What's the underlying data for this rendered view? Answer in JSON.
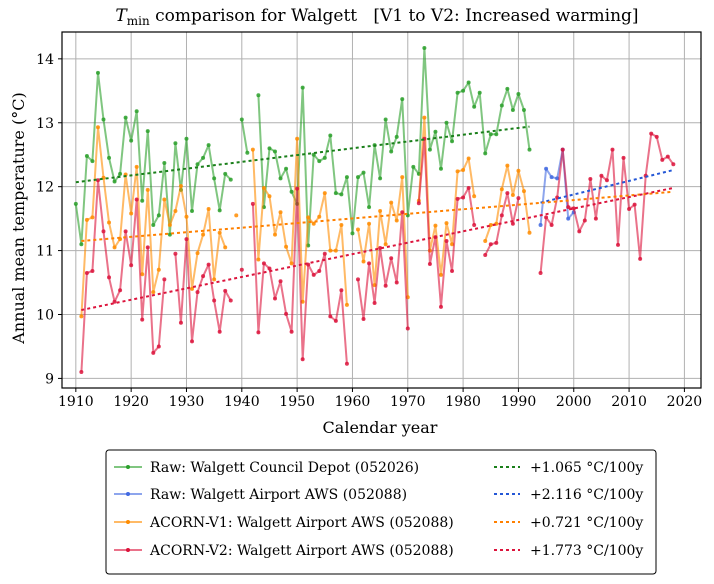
{
  "chart_data": {
    "type": "line",
    "title": {
      "prefix_italic": "T",
      "subscript": "min",
      "rest": " comparison for Walgett   [V1 to V2: Increased warming]"
    },
    "xlabel": "Calendar year",
    "ylabel": "Annual mean temperature (°C)",
    "xlim": [
      1907.5,
      2023
    ],
    "ylim": [
      8.85,
      14.42
    ],
    "xticks": [
      1910,
      1920,
      1930,
      1940,
      1950,
      1960,
      1970,
      1980,
      1990,
      2000,
      2010,
      2020
    ],
    "yticks": [
      9,
      10,
      11,
      12,
      13,
      14
    ],
    "grid": true,
    "legend_position": "below-center",
    "series": [
      {
        "name": "Raw: Walgett Council Depot (052026)",
        "color": "#2ca02c",
        "trend_color": "#1a7f1a",
        "points": [
          [
            1910,
            11.73
          ],
          [
            1911,
            11.1
          ],
          [
            1912,
            12.48
          ],
          [
            1913,
            12.4
          ],
          [
            1914,
            13.78
          ],
          [
            1915,
            13.05
          ],
          [
            1916,
            12.45
          ],
          [
            1917,
            12.08
          ],
          [
            1918,
            12.2
          ],
          [
            1919,
            13.08
          ],
          [
            1920,
            12.72
          ],
          [
            1921,
            13.18
          ],
          [
            1922,
            11.78
          ],
          [
            1923,
            12.87
          ],
          [
            1924,
            11.4
          ],
          [
            1925,
            11.55
          ],
          [
            1926,
            12.37
          ],
          [
            1927,
            11.25
          ],
          [
            1928,
            12.68
          ],
          [
            1929,
            11.95
          ],
          [
            1930,
            12.75
          ],
          [
            1931,
            11.62
          ],
          [
            1932,
            12.35
          ],
          [
            1933,
            12.45
          ],
          [
            1934,
            12.65
          ],
          [
            1935,
            12.13
          ],
          [
            1936,
            11.63
          ],
          [
            1937,
            12.2
          ],
          [
            1938,
            12.11
          ],
          null,
          [
            1940,
            13.05
          ],
          [
            1941,
            12.53
          ],
          null,
          [
            1943,
            13.43
          ],
          [
            1944,
            11.68
          ],
          [
            1945,
            12.6
          ],
          [
            1946,
            12.55
          ],
          [
            1947,
            12.13
          ],
          [
            1948,
            12.28
          ],
          [
            1949,
            11.92
          ],
          [
            1950,
            11.73
          ],
          [
            1951,
            13.55
          ],
          [
            1952,
            11.08
          ],
          [
            1953,
            12.5
          ],
          [
            1954,
            12.4
          ],
          [
            1955,
            12.45
          ],
          [
            1956,
            12.8
          ],
          [
            1957,
            11.9
          ],
          [
            1958,
            11.88
          ],
          [
            1959,
            12.15
          ],
          [
            1960,
            11.27
          ],
          [
            1961,
            12.15
          ],
          [
            1962,
            12.22
          ],
          [
            1963,
            11.68
          ],
          [
            1964,
            12.65
          ],
          [
            1965,
            12.13
          ],
          [
            1966,
            13.05
          ],
          [
            1967,
            12.55
          ],
          [
            1968,
            12.78
          ],
          [
            1969,
            13.37
          ],
          [
            1970,
            11.55
          ],
          [
            1971,
            12.31
          ],
          [
            1972,
            12.2
          ],
          [
            1973,
            14.17
          ],
          [
            1974,
            12.58
          ],
          [
            1975,
            12.86
          ],
          [
            1976,
            12.28
          ],
          [
            1977,
            13.0
          ],
          [
            1978,
            12.71
          ],
          [
            1979,
            13.47
          ],
          [
            1980,
            13.5
          ],
          [
            1981,
            13.63
          ],
          [
            1982,
            13.25
          ],
          [
            1983,
            13.47
          ],
          [
            1984,
            12.52
          ],
          [
            1985,
            12.82
          ],
          [
            1986,
            12.82
          ],
          [
            1987,
            13.27
          ],
          [
            1988,
            13.53
          ],
          [
            1989,
            13.2
          ],
          [
            1990,
            13.45
          ],
          [
            1991,
            13.2
          ],
          [
            1992,
            12.58
          ]
        ],
        "trend": {
          "label": "+1.065 °C/100y",
          "x": [
            1910,
            1992
          ],
          "y": [
            12.07,
            12.94
          ]
        }
      },
      {
        "name": "Raw: Walgett Airport AWS (052088)",
        "color": "#4169e1",
        "trend_color": "#2457d6",
        "points": [
          [
            1994,
            11.4
          ],
          [
            1995,
            12.28
          ],
          [
            1996,
            12.15
          ],
          [
            1997,
            12.13
          ],
          [
            1998,
            12.58
          ],
          [
            1999,
            11.5
          ],
          [
            2000,
            11.6
          ]
        ],
        "trend": {
          "label": "+2.116 °C/100y",
          "x": [
            1994,
            2018
          ],
          "y": [
            11.75,
            12.26
          ]
        }
      },
      {
        "name": "ACORN-V1: Walgett Airport AWS (052088)",
        "color": "#ff8c00",
        "trend_color": "#ff8000",
        "points": [
          [
            1911,
            9.97
          ],
          [
            1912,
            11.48
          ],
          [
            1913,
            11.52
          ],
          [
            1914,
            12.93
          ],
          [
            1915,
            12.14
          ],
          [
            1916,
            11.44
          ],
          [
            1917,
            11.05
          ],
          [
            1918,
            11.18
          ],
          [
            1919,
            12.19
          ],
          [
            1920,
            11.58
          ],
          [
            1921,
            12.31
          ],
          [
            1922,
            10.63
          ],
          [
            1923,
            11.95
          ],
          [
            1924,
            10.35
          ],
          [
            1925,
            10.7
          ],
          [
            1926,
            11.8
          ],
          [
            1927,
            11.4
          ],
          [
            1928,
            11.62
          ],
          [
            1929,
            12.01
          ],
          [
            1930,
            11.53
          ],
          [
            1931,
            10.4
          ],
          [
            1932,
            10.96
          ],
          [
            1933,
            11.25
          ],
          [
            1934,
            11.65
          ],
          [
            1935,
            10.55
          ],
          [
            1936,
            11.28
          ],
          [
            1937,
            11.05
          ],
          null,
          [
            1939,
            11.55
          ],
          null,
          [
            1942,
            12.58
          ],
          [
            1943,
            10.86
          ],
          [
            1944,
            11.98
          ],
          [
            1945,
            11.85
          ],
          [
            1946,
            11.25
          ],
          [
            1947,
            11.6
          ],
          [
            1948,
            11.06
          ],
          [
            1949,
            10.8
          ],
          [
            1950,
            12.75
          ],
          [
            1951,
            10.2
          ],
          [
            1952,
            11.52
          ],
          [
            1953,
            11.42
          ],
          [
            1954,
            11.53
          ],
          [
            1955,
            11.9
          ],
          [
            1956,
            11.0
          ],
          [
            1957,
            11.0
          ],
          [
            1958,
            11.4
          ],
          [
            1959,
            10.15
          ],
          null,
          [
            1961,
            11.33
          ],
          [
            1962,
            10.83
          ],
          [
            1963,
            11.42
          ],
          [
            1964,
            10.46
          ],
          [
            1965,
            11.62
          ],
          [
            1966,
            11.1
          ],
          [
            1967,
            11.75
          ],
          [
            1968,
            11.47
          ],
          [
            1969,
            12.15
          ],
          [
            1970,
            10.27
          ],
          null,
          [
            1972,
            11.78
          ],
          [
            1973,
            13.08
          ],
          [
            1974,
            11.0
          ],
          [
            1975,
            11.39
          ],
          [
            1976,
            10.62
          ],
          [
            1977,
            11.43
          ],
          [
            1978,
            11.1
          ],
          [
            1979,
            12.24
          ],
          [
            1980,
            12.26
          ],
          [
            1981,
            12.44
          ],
          [
            1982,
            11.85
          ],
          null,
          [
            1984,
            11.15
          ],
          [
            1985,
            11.4
          ],
          [
            1986,
            11.42
          ],
          [
            1987,
            11.96
          ],
          [
            1988,
            12.33
          ],
          [
            1989,
            11.87
          ],
          [
            1990,
            12.25
          ],
          [
            1991,
            11.93
          ],
          [
            1992,
            11.28
          ]
        ],
        "trend": {
          "label": "+0.721 °C/100y",
          "x": [
            1911,
            2018
          ],
          "y": [
            11.15,
            11.92
          ]
        }
      },
      {
        "name": "ACORN-V2: Walgett Airport AWS (052088)",
        "color": "#dc143c",
        "trend_color": "#dc143c",
        "points": [
          [
            1911,
            9.1
          ],
          [
            1912,
            10.65
          ],
          [
            1913,
            10.68
          ],
          [
            1914,
            12.1
          ],
          [
            1915,
            11.3
          ],
          [
            1916,
            10.58
          ],
          [
            1917,
            10.2
          ],
          [
            1918,
            10.38
          ],
          [
            1919,
            11.3
          ],
          [
            1920,
            10.77
          ],
          [
            1921,
            11.8
          ],
          [
            1922,
            9.92
          ],
          [
            1923,
            11.05
          ],
          [
            1924,
            9.4
          ],
          [
            1925,
            9.5
          ],
          [
            1926,
            10.55
          ],
          null,
          [
            1928,
            10.95
          ],
          [
            1929,
            9.87
          ],
          [
            1930,
            11.18
          ],
          [
            1931,
            9.58
          ],
          [
            1932,
            10.35
          ],
          [
            1933,
            10.6
          ],
          [
            1934,
            10.78
          ],
          [
            1935,
            10.22
          ],
          [
            1936,
            9.73
          ],
          [
            1937,
            10.37
          ],
          [
            1938,
            10.22
          ],
          null,
          [
            1940,
            10.7
          ],
          null,
          [
            1942,
            11.73
          ],
          [
            1943,
            9.72
          ],
          [
            1944,
            10.8
          ],
          [
            1945,
            10.72
          ],
          [
            1946,
            10.25
          ],
          [
            1947,
            10.52
          ],
          [
            1948,
            10.01
          ],
          [
            1949,
            9.73
          ],
          [
            1950,
            11.97
          ],
          [
            1951,
            9.3
          ],
          [
            1952,
            10.78
          ],
          [
            1953,
            10.62
          ],
          [
            1954,
            10.68
          ],
          [
            1955,
            10.95
          ],
          [
            1956,
            9.97
          ],
          [
            1957,
            9.9
          ],
          [
            1958,
            10.38
          ],
          [
            1959,
            9.23
          ],
          null,
          [
            1961,
            10.55
          ],
          [
            1962,
            9.93
          ],
          [
            1963,
            10.8
          ],
          [
            1964,
            10.18
          ],
          [
            1965,
            11.04
          ],
          [
            1966,
            10.45
          ],
          [
            1967,
            10.88
          ],
          [
            1968,
            10.5
          ],
          [
            1969,
            11.6
          ],
          [
            1970,
            9.78
          ],
          null,
          [
            1972,
            11.74
          ],
          [
            1973,
            12.75
          ],
          [
            1974,
            10.79
          ],
          [
            1975,
            11.21
          ],
          [
            1976,
            10.12
          ],
          [
            1977,
            11.15
          ],
          [
            1978,
            10.68
          ],
          [
            1979,
            11.81
          ],
          [
            1980,
            11.83
          ],
          [
            1981,
            11.98
          ],
          [
            1982,
            11.4
          ],
          null,
          [
            1984,
            10.93
          ],
          [
            1985,
            11.1
          ],
          [
            1986,
            11.12
          ],
          [
            1987,
            11.55
          ],
          [
            1988,
            11.9
          ],
          [
            1989,
            11.42
          ],
          [
            1990,
            11.82
          ],
          null,
          [
            1994,
            10.65
          ],
          [
            1995,
            11.52
          ],
          [
            1996,
            11.4
          ],
          [
            1997,
            11.83
          ],
          [
            1998,
            12.58
          ],
          [
            1999,
            11.68
          ],
          [
            2000,
            11.66
          ],
          [
            2001,
            11.3
          ],
          [
            2002,
            11.47
          ],
          [
            2003,
            12.12
          ],
          [
            2004,
            11.5
          ],
          [
            2005,
            12.17
          ],
          [
            2006,
            12.1
          ],
          [
            2007,
            12.58
          ],
          [
            2008,
            11.09
          ],
          [
            2009,
            12.45
          ],
          [
            2010,
            11.65
          ],
          [
            2011,
            11.72
          ],
          [
            2012,
            10.87
          ],
          [
            2013,
            12.17
          ],
          [
            2014,
            12.83
          ],
          [
            2015,
            12.78
          ],
          [
            2016,
            12.42
          ],
          [
            2017,
            12.47
          ],
          [
            2018,
            12.35
          ]
        ],
        "trend": {
          "label": "+1.773 °C/100y",
          "x": [
            1911,
            2018
          ],
          "y": [
            10.07,
            11.98
          ]
        }
      }
    ]
  }
}
